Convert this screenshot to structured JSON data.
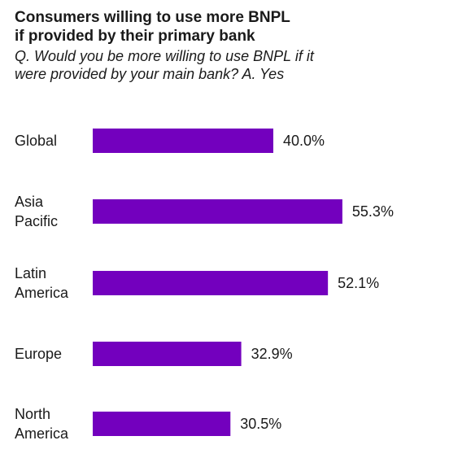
{
  "header": {
    "title_line1": "Consumers willing to use more BNPL",
    "title_line2": "if provided by their primary bank",
    "subtitle_line1": "Q. Would you be more willing to use BNPL if it",
    "subtitle_line2": "were provided by your main bank? A. Yes"
  },
  "chart_data": {
    "type": "bar",
    "orientation": "horizontal",
    "title": "Consumers willing to use more BNPL if provided by their primary bank",
    "subtitle": "Q. Would you be more willing to use BNPL if it were provided by your main bank? A. Yes",
    "categories": [
      [
        "Global"
      ],
      [
        "Asia",
        "Pacific"
      ],
      [
        "Latin",
        "America"
      ],
      [
        "Europe"
      ],
      [
        "North",
        "America"
      ]
    ],
    "values": [
      40.0,
      55.3,
      52.1,
      32.9,
      30.5
    ],
    "value_labels": [
      "40.0%",
      "55.3%",
      "52.1%",
      "32.9%",
      "30.5%"
    ],
    "unit": "%",
    "bar_color": "#7300BE",
    "grid": false,
    "legend": "none"
  }
}
